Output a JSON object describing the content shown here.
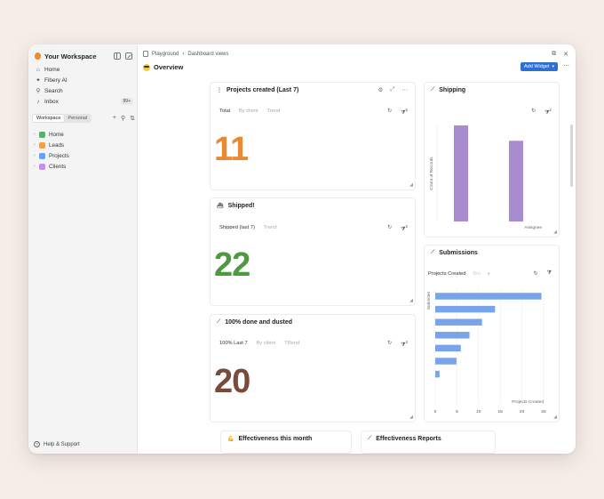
{
  "sidebar": {
    "workspace_name": "Your Workspace",
    "nav": [
      {
        "label": "Home",
        "icon": "home-icon",
        "glyph": "⌂"
      },
      {
        "label": "Fibery AI",
        "icon": "sparkle-icon",
        "glyph": "✦"
      },
      {
        "label": "Search",
        "icon": "search-icon",
        "glyph": "⚲"
      },
      {
        "label": "Inbox",
        "icon": "bell-icon",
        "glyph": "🔔",
        "badge": "99+"
      }
    ],
    "tabs": {
      "workspace": "Workspace",
      "personal": "Personal"
    },
    "tree": [
      {
        "label": "Home",
        "color": "#58b06a"
      },
      {
        "label": "Leads",
        "color": "#f3a04b"
      },
      {
        "label": "Projects",
        "color": "#6aa0ee"
      },
      {
        "label": "Clients",
        "color": "#c58ee8"
      }
    ],
    "help": "Help & Support"
  },
  "header": {
    "breadcrumb": [
      "Playground",
      "Dashboard views"
    ],
    "title": "Overview",
    "add_widget": "Add Widget"
  },
  "widgets": {
    "projects": {
      "title": "Projects created (Last 7)",
      "tabs": [
        "Total",
        "By client",
        "Trend"
      ],
      "value": "11",
      "color": "#e88a35",
      "filter_count": "5"
    },
    "shipped": {
      "title": "Shipped!",
      "tabs": [
        "Shipped (last 7)",
        "Trend"
      ],
      "value": "22",
      "color": "#4d9a40",
      "filter_count": "2"
    },
    "done": {
      "title": "100% done and dusted",
      "tabs": [
        "100% Last 7",
        "By client",
        "TRend"
      ],
      "value": "20",
      "color": "#7a4a3a",
      "filter_count": "2"
    },
    "shipping": {
      "title": "Shipping",
      "filter_count": "2"
    },
    "submissions": {
      "title": "Submissions",
      "tabs": [
        "Projects Created",
        "Bro"
      ]
    },
    "effectiveness": {
      "title": "Effectiveness this month"
    },
    "effectiveness_reports": {
      "title": "Effectiveness Reports"
    }
  },
  "chart_data": [
    {
      "type": "bar",
      "title": "Shipping",
      "ylabel": "Count of Records",
      "xlabel": "Assignee",
      "categories": [
        "",
        ""
      ],
      "values": [
        1,
        0.84
      ],
      "ylim": [
        0,
        1
      ],
      "color": "#a98bd0"
    },
    {
      "type": "bar",
      "orientation": "horizontal",
      "title": "Submissions",
      "ylabel": "Submitter",
      "xlabel": "Projects Created",
      "categories": [
        "",
        "",
        "",
        "",
        "",
        "",
        ""
      ],
      "values": [
        24.5,
        13.8,
        10.8,
        7.9,
        5.9,
        4.9,
        1.0
      ],
      "xlim": [
        0,
        25
      ],
      "xticks": [
        0,
        5,
        10,
        15,
        20,
        25
      ],
      "color": "#7aa4ea"
    }
  ]
}
